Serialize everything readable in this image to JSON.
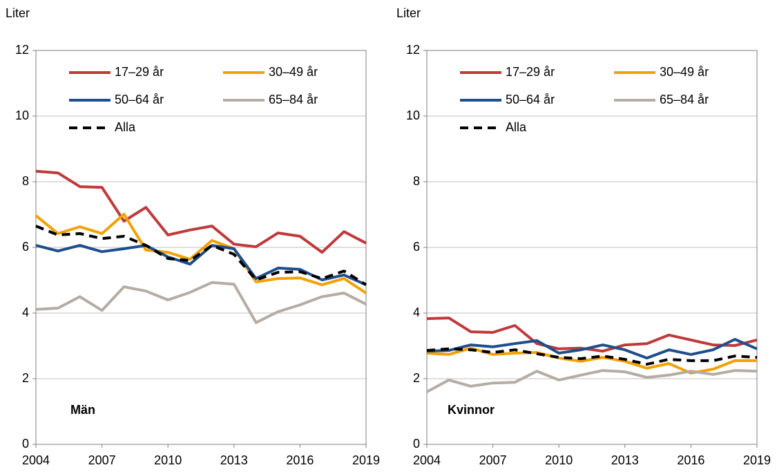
{
  "chart_data": [
    {
      "type": "line",
      "y_label": "Liter",
      "annotation": "Män",
      "x": [
        2004,
        2005,
        2006,
        2007,
        2008,
        2009,
        2010,
        2011,
        2012,
        2013,
        2014,
        2015,
        2016,
        2017,
        2018,
        2019
      ],
      "xlim": [
        2004,
        2019
      ],
      "xticks": [
        2004,
        2007,
        2010,
        2013,
        2016,
        2019
      ],
      "ylim": [
        0,
        12
      ],
      "yticks": [
        0,
        2,
        4,
        6,
        8,
        10,
        12
      ],
      "grid": true,
      "legend": "top",
      "series": [
        {
          "name": "17–29 år",
          "color": "#c0393b",
          "values": [
            8.32,
            8.27,
            7.85,
            7.83,
            6.8,
            7.22,
            6.38,
            6.53,
            6.65,
            6.1,
            6.02,
            6.44,
            6.34,
            5.85,
            6.48,
            6.13
          ]
        },
        {
          "name": "30–49 år",
          "color": "#f2a100",
          "values": [
            6.97,
            6.42,
            6.63,
            6.42,
            7.01,
            5.92,
            5.85,
            5.64,
            6.21,
            5.96,
            4.95,
            5.05,
            5.07,
            4.86,
            5.05,
            4.61
          ]
        },
        {
          "name": "50–64 år",
          "color": "#1f4e8c",
          "values": [
            6.06,
            5.89,
            6.06,
            5.87,
            5.96,
            6.06,
            5.71,
            5.49,
            6.06,
            5.96,
            5.05,
            5.37,
            5.33,
            5.01,
            5.16,
            4.86
          ]
        },
        {
          "name": "65–84 år",
          "color": "#b5aca3",
          "values": [
            4.11,
            4.15,
            4.5,
            4.08,
            4.8,
            4.67,
            4.4,
            4.63,
            4.93,
            4.88,
            3.71,
            4.04,
            4.25,
            4.5,
            4.61,
            4.27
          ]
        },
        {
          "name": "Alla",
          "color": "#000000",
          "dashed": true,
          "values": [
            6.65,
            6.38,
            6.42,
            6.27,
            6.34,
            6.06,
            5.66,
            5.6,
            6.06,
            5.79,
            5.01,
            5.24,
            5.26,
            5.05,
            5.28,
            4.86
          ]
        }
      ]
    },
    {
      "type": "line",
      "y_label": "Liter",
      "annotation": "Kvinnor",
      "x": [
        2004,
        2005,
        2006,
        2007,
        2008,
        2009,
        2010,
        2011,
        2012,
        2013,
        2014,
        2015,
        2016,
        2017,
        2018,
        2019
      ],
      "xlim": [
        2004,
        2019
      ],
      "xticks": [
        2004,
        2007,
        2010,
        2013,
        2016,
        2019
      ],
      "ylim": [
        0,
        12
      ],
      "yticks": [
        0,
        2,
        4,
        6,
        8,
        10,
        12
      ],
      "grid": true,
      "legend": "top",
      "series": [
        {
          "name": "17–29 år",
          "color": "#c0393b",
          "values": [
            3.83,
            3.85,
            3.43,
            3.41,
            3.62,
            3.07,
            2.91,
            2.93,
            2.84,
            3.03,
            3.07,
            3.33,
            3.18,
            3.03,
            3.01,
            3.18
          ]
        },
        {
          "name": "30–49 år",
          "color": "#f2a100",
          "values": [
            2.78,
            2.74,
            2.93,
            2.74,
            2.78,
            2.8,
            2.63,
            2.53,
            2.65,
            2.53,
            2.32,
            2.46,
            2.17,
            2.29,
            2.55,
            2.55
          ]
        },
        {
          "name": "50–64 år",
          "color": "#1f4e8c",
          "values": [
            2.84,
            2.86,
            3.03,
            2.97,
            3.07,
            3.16,
            2.78,
            2.88,
            3.03,
            2.88,
            2.63,
            2.88,
            2.74,
            2.88,
            3.2,
            2.91
          ]
        },
        {
          "name": "65–84 år",
          "color": "#b5aca3",
          "values": [
            1.6,
            1.96,
            1.77,
            1.87,
            1.89,
            2.23,
            1.96,
            2.11,
            2.25,
            2.21,
            2.04,
            2.11,
            2.23,
            2.13,
            2.25,
            2.23
          ]
        },
        {
          "name": "Alla",
          "color": "#000000",
          "dashed": true,
          "values": [
            2.86,
            2.91,
            2.88,
            2.8,
            2.88,
            2.76,
            2.65,
            2.61,
            2.69,
            2.59,
            2.44,
            2.59,
            2.55,
            2.55,
            2.69,
            2.65
          ]
        }
      ]
    }
  ]
}
